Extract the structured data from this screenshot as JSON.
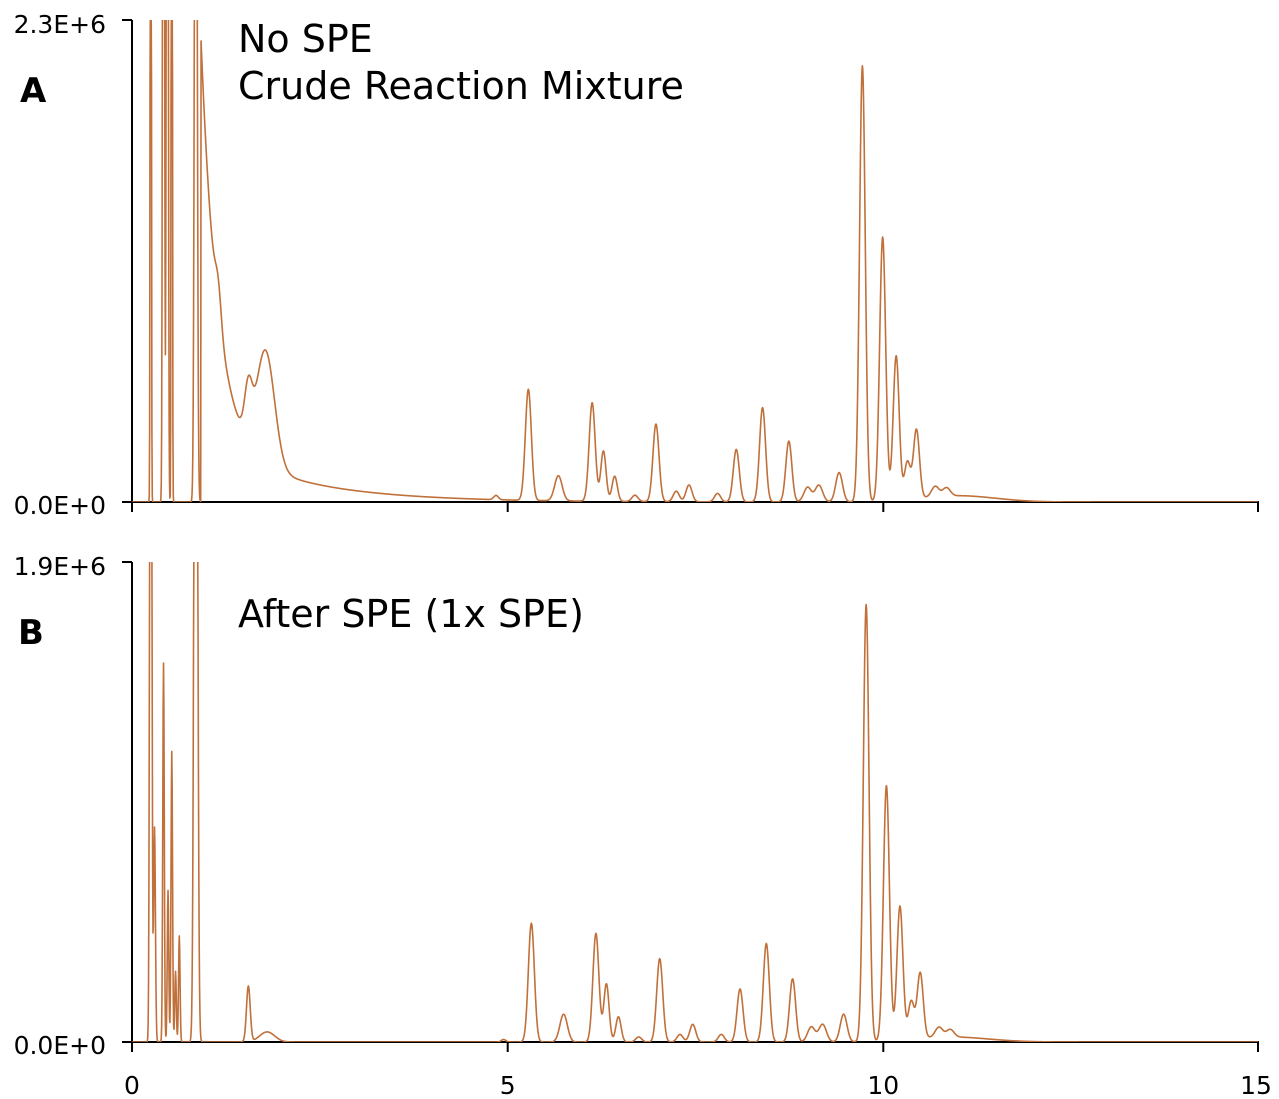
{
  "figure": {
    "line_color": "#C0703A",
    "axis_color": "#000000"
  },
  "chart_data": [
    {
      "type": "line",
      "panel_label": "A",
      "annotation_lines": [
        "No SPE",
        "Crude Reaction Mixture"
      ],
      "xlim": [
        0,
        15
      ],
      "ylim": [
        0,
        2300000
      ],
      "x_ticks": [
        "0",
        "5",
        "10",
        "15"
      ],
      "y_tick_labels": [
        "0.0E+0",
        "2.3E+6"
      ],
      "x_tick_labels_visible": false,
      "series": [
        {
          "peaks": [
            {
              "x": 0.25,
              "h": 8000000,
              "w": 0.006
            },
            {
              "x": 0.42,
              "h": 8000000,
              "w": 0.01
            },
            {
              "x": 0.47,
              "h": 8000000,
              "w": 0.01
            },
            {
              "x": 0.53,
              "h": 8000000,
              "w": 0.006
            },
            {
              "x": 0.85,
              "h": 5000000,
              "w": 0.016
            },
            {
              "x": 1.15,
              "h": 150000,
              "w": 0.04
            },
            {
              "x": 1.55,
              "h": 230000,
              "w": 0.05
            },
            {
              "x": 1.78,
              "h": 540000,
              "w": 0.12
            },
            {
              "x": 4.85,
              "h": 20000,
              "w": 0.03
            },
            {
              "x": 5.28,
              "h": 530000,
              "w": 0.04
            },
            {
              "x": 5.68,
              "h": 120000,
              "w": 0.05
            },
            {
              "x": 6.13,
              "h": 470000,
              "w": 0.04
            },
            {
              "x": 6.28,
              "h": 240000,
              "w": 0.035
            },
            {
              "x": 6.43,
              "h": 120000,
              "w": 0.035
            },
            {
              "x": 6.7,
              "h": 30000,
              "w": 0.04
            },
            {
              "x": 6.98,
              "h": 370000,
              "w": 0.04
            },
            {
              "x": 7.25,
              "h": 50000,
              "w": 0.04
            },
            {
              "x": 7.42,
              "h": 80000,
              "w": 0.04
            },
            {
              "x": 7.8,
              "h": 40000,
              "w": 0.04
            },
            {
              "x": 8.05,
              "h": 250000,
              "w": 0.04
            },
            {
              "x": 8.4,
              "h": 450000,
              "w": 0.04
            },
            {
              "x": 8.75,
              "h": 290000,
              "w": 0.04
            },
            {
              "x": 9.0,
              "h": 70000,
              "w": 0.05
            },
            {
              "x": 9.15,
              "h": 80000,
              "w": 0.05
            },
            {
              "x": 9.42,
              "h": 140000,
              "w": 0.045
            },
            {
              "x": 9.73,
              "h": 2080000,
              "w": 0.038
            },
            {
              "x": 10.0,
              "h": 1260000,
              "w": 0.04
            },
            {
              "x": 10.18,
              "h": 690000,
              "w": 0.04
            },
            {
              "x": 10.33,
              "h": 180000,
              "w": 0.04
            },
            {
              "x": 10.45,
              "h": 330000,
              "w": 0.04
            },
            {
              "x": 10.7,
              "h": 50000,
              "w": 0.05
            },
            {
              "x": 10.85,
              "h": 40000,
              "w": 0.05
            }
          ],
          "decay": {
            "start": 0.92,
            "amp": 1900000,
            "tau": 0.22,
            "amp2": 300000,
            "tau2": 1.2
          },
          "hump": {
            "x": 11.0,
            "h": 30000,
            "w": 0.5
          }
        }
      ]
    },
    {
      "type": "line",
      "panel_label": "B",
      "annotation_lines": [
        "After SPE (1x SPE)"
      ],
      "xlim": [
        0,
        15
      ],
      "ylim": [
        0,
        1900000
      ],
      "x_ticks": [
        "0",
        "5",
        "10",
        "15"
      ],
      "y_tick_labels": [
        "0.0E+0",
        "1.9E+6"
      ],
      "x_tick_labels_visible": true,
      "series": [
        {
          "peaks": [
            {
              "x": 0.25,
              "h": 5000000,
              "w": 0.012
            },
            {
              "x": 0.3,
              "h": 850000,
              "w": 0.012
            },
            {
              "x": 0.42,
              "h": 1500000,
              "w": 0.01
            },
            {
              "x": 0.48,
              "h": 600000,
              "w": 0.01
            },
            {
              "x": 0.53,
              "h": 1150000,
              "w": 0.01
            },
            {
              "x": 0.58,
              "h": 280000,
              "w": 0.01
            },
            {
              "x": 0.63,
              "h": 420000,
              "w": 0.01
            },
            {
              "x": 0.85,
              "h": 5000000,
              "w": 0.02
            },
            {
              "x": 1.55,
              "h": 220000,
              "w": 0.025
            },
            {
              "x": 1.8,
              "h": 40000,
              "w": 0.1
            },
            {
              "x": 4.95,
              "h": 10000,
              "w": 0.03
            },
            {
              "x": 5.32,
              "h": 470000,
              "w": 0.04
            },
            {
              "x": 5.75,
              "h": 110000,
              "w": 0.05
            },
            {
              "x": 6.18,
              "h": 430000,
              "w": 0.04
            },
            {
              "x": 6.32,
              "h": 230000,
              "w": 0.035
            },
            {
              "x": 6.48,
              "h": 100000,
              "w": 0.035
            },
            {
              "x": 6.75,
              "h": 20000,
              "w": 0.04
            },
            {
              "x": 7.03,
              "h": 330000,
              "w": 0.04
            },
            {
              "x": 7.3,
              "h": 30000,
              "w": 0.04
            },
            {
              "x": 7.47,
              "h": 70000,
              "w": 0.04
            },
            {
              "x": 7.85,
              "h": 30000,
              "w": 0.04
            },
            {
              "x": 8.1,
              "h": 210000,
              "w": 0.04
            },
            {
              "x": 8.45,
              "h": 390000,
              "w": 0.04
            },
            {
              "x": 8.8,
              "h": 250000,
              "w": 0.04
            },
            {
              "x": 9.05,
              "h": 60000,
              "w": 0.05
            },
            {
              "x": 9.2,
              "h": 70000,
              "w": 0.05
            },
            {
              "x": 9.48,
              "h": 110000,
              "w": 0.045
            },
            {
              "x": 9.78,
              "h": 1730000,
              "w": 0.038
            },
            {
              "x": 10.05,
              "h": 1010000,
              "w": 0.04
            },
            {
              "x": 10.23,
              "h": 530000,
              "w": 0.04
            },
            {
              "x": 10.38,
              "h": 150000,
              "w": 0.04
            },
            {
              "x": 10.5,
              "h": 260000,
              "w": 0.04
            },
            {
              "x": 10.75,
              "h": 40000,
              "w": 0.05
            },
            {
              "x": 10.9,
              "h": 30000,
              "w": 0.05
            }
          ],
          "decay": null,
          "hump": {
            "x": 10.9,
            "h": 20000,
            "w": 0.5
          }
        }
      ]
    }
  ]
}
